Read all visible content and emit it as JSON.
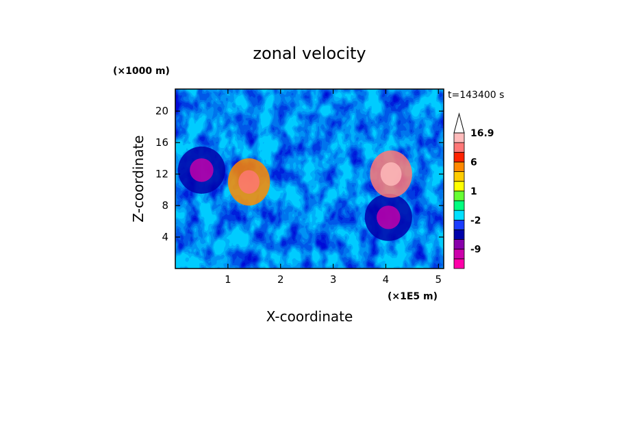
{
  "chart_data": {
    "type": "heatmap",
    "title": "zonal velocity",
    "xlabel": "X-coordinate",
    "ylabel": "Z-coordinate",
    "x_unit": "(×1E5 m)",
    "y_unit": "(×1000 m)",
    "time_label": "t=143400 s",
    "xlim": [
      0,
      5.1
    ],
    "ylim": [
      0,
      22.8
    ],
    "x_ticks": [
      1,
      2,
      3,
      4,
      5
    ],
    "y_ticks": [
      4,
      8,
      12,
      16,
      20
    ],
    "colorbar": {
      "labels": [
        "16.9",
        "6",
        "1",
        "-2",
        "-9"
      ],
      "levels": [
        -16,
        -12,
        -9,
        -6,
        -3,
        -2,
        -1,
        0,
        1,
        2,
        3,
        6,
        9,
        12,
        16.9
      ],
      "colors": [
        "#ff00a8",
        "#cc00aa",
        "#8800aa",
        "#0000aa",
        "#1a3cff",
        "#00e0ff",
        "#00ff7f",
        "#66ff33",
        "#ffff00",
        "#ffcc00",
        "#ff8800",
        "#ff2200",
        "#ff7777",
        "#ffbbbb"
      ],
      "extend": "max"
    },
    "features": [
      {
        "x": 0.5,
        "z": 12.5,
        "value": -6,
        "wx": 0.45,
        "wz": 3
      },
      {
        "x": 4.05,
        "z": 6.5,
        "value": -6,
        "wx": 0.45,
        "wz": 3
      },
      {
        "x": 4.1,
        "z": 12,
        "value": 9,
        "wx": 0.4,
        "wz": 3
      },
      {
        "x": 1.4,
        "z": 11,
        "value": 5,
        "wx": 0.4,
        "wz": 3
      }
    ]
  }
}
